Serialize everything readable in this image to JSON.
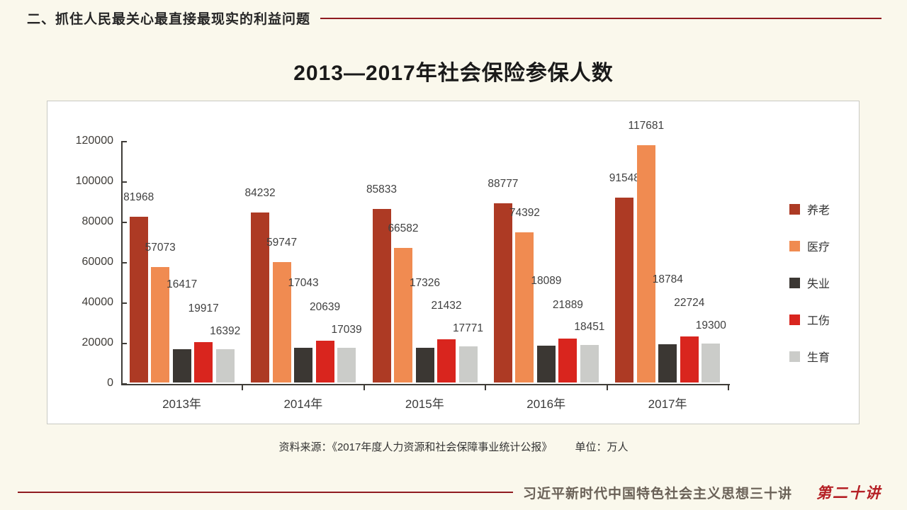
{
  "slide": {
    "header": "二、抓住人民最关心最直接最现实的利益问题",
    "source_note": "资料来源：《2017年度人力资源和社会保障事业统计公报》",
    "unit_note": "单位：万人",
    "footer_title": "习近平新时代中国特色社会主义思想三十讲",
    "footer_badge": "第二十讲",
    "colors": {
      "accent_red_line": "#8f1b20",
      "badge_red": "#b52025",
      "axis": "#3f3c38",
      "background": "#faf8ec",
      "card_background": "#ffffff"
    }
  },
  "chart_data": {
    "type": "bar",
    "title": "2013—2017年社会保险参保人数",
    "categories": [
      "2013年",
      "2014年",
      "2015年",
      "2016年",
      "2017年"
    ],
    "series": [
      {
        "name": "养老",
        "color": "#ad3a24",
        "values": [
          81968,
          84232,
          85833,
          88777,
          91548
        ]
      },
      {
        "name": "医疗",
        "color": "#f08b51",
        "values": [
          57073,
          59747,
          66582,
          74392,
          117681
        ]
      },
      {
        "name": "失业",
        "color": "#3b3733",
        "values": [
          16417,
          17043,
          17326,
          18089,
          18784
        ]
      },
      {
        "name": "工伤",
        "color": "#d9251e",
        "values": [
          19917,
          20639,
          21432,
          21889,
          22724
        ]
      },
      {
        "name": "生育",
        "color": "#cbccc9",
        "values": [
          16392,
          17039,
          17771,
          18451,
          19300
        ]
      }
    ],
    "ylim": [
      0,
      120000
    ],
    "ytick_step": 20000,
    "yticks": [
      0,
      20000,
      40000,
      60000,
      80000,
      100000,
      120000
    ],
    "xlabel": "",
    "ylabel": "",
    "unit": "万人",
    "data_labels": true,
    "grid": false,
    "legend_position": "right"
  }
}
